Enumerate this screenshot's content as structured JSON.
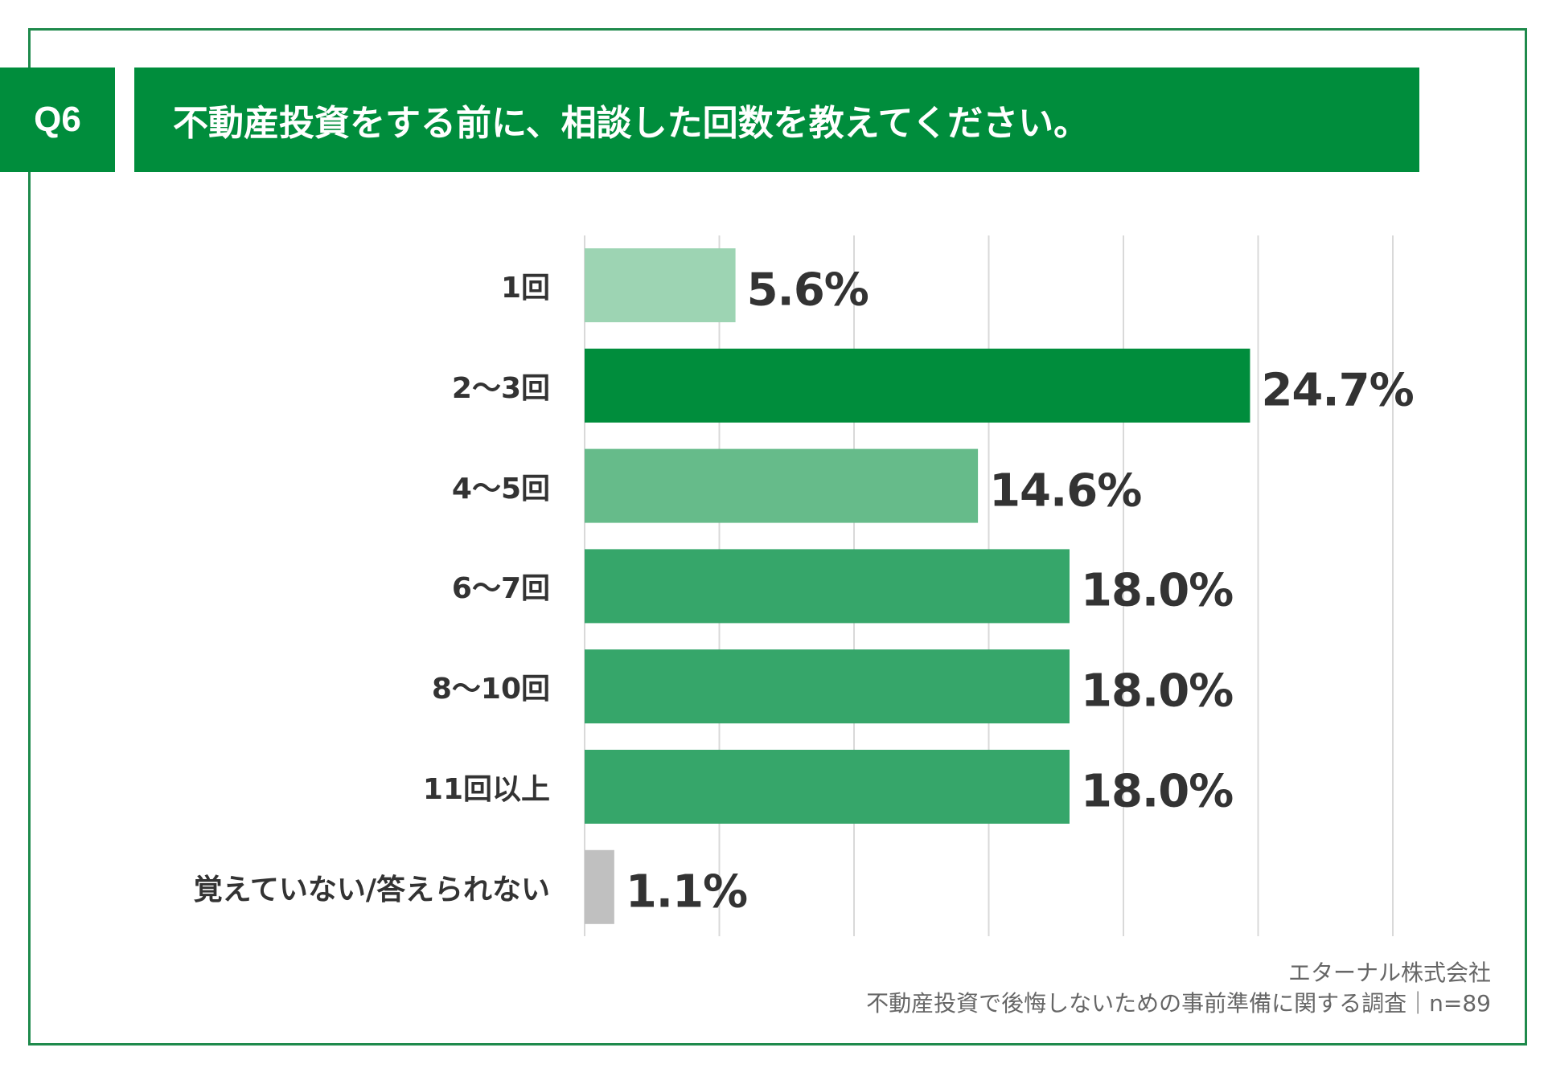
{
  "header": {
    "question_tag": "Q6",
    "title": "不動産投資をする前に、相談した回数を教えてください。"
  },
  "chart_data": {
    "type": "bar",
    "orientation": "horizontal",
    "categories": [
      "1回",
      "2〜3回",
      "4〜5回",
      "6〜7回",
      "8〜10回",
      "11回以上",
      "覚えていない/答えられない"
    ],
    "values": [
      5.6,
      24.7,
      14.6,
      18.0,
      18.0,
      18.0,
      1.1
    ],
    "value_labels": [
      "5.6%",
      "24.7%",
      "14.6%",
      "18.0%",
      "18.0%",
      "18.0%",
      "1.1%"
    ],
    "colors": [
      "#9dd4b3",
      "#008d3c",
      "#66bb8a",
      "#36a66a",
      "#36a66a",
      "#36a66a",
      "#c0c0c0"
    ],
    "xlim": [
      0,
      30
    ],
    "grid": true,
    "title": "",
    "xlabel": "",
    "ylabel": ""
  },
  "footer": {
    "source_company": "エターナル株式会社",
    "survey_name": "不動産投資で後悔しないための事前準備に関する調査｜n=89"
  }
}
